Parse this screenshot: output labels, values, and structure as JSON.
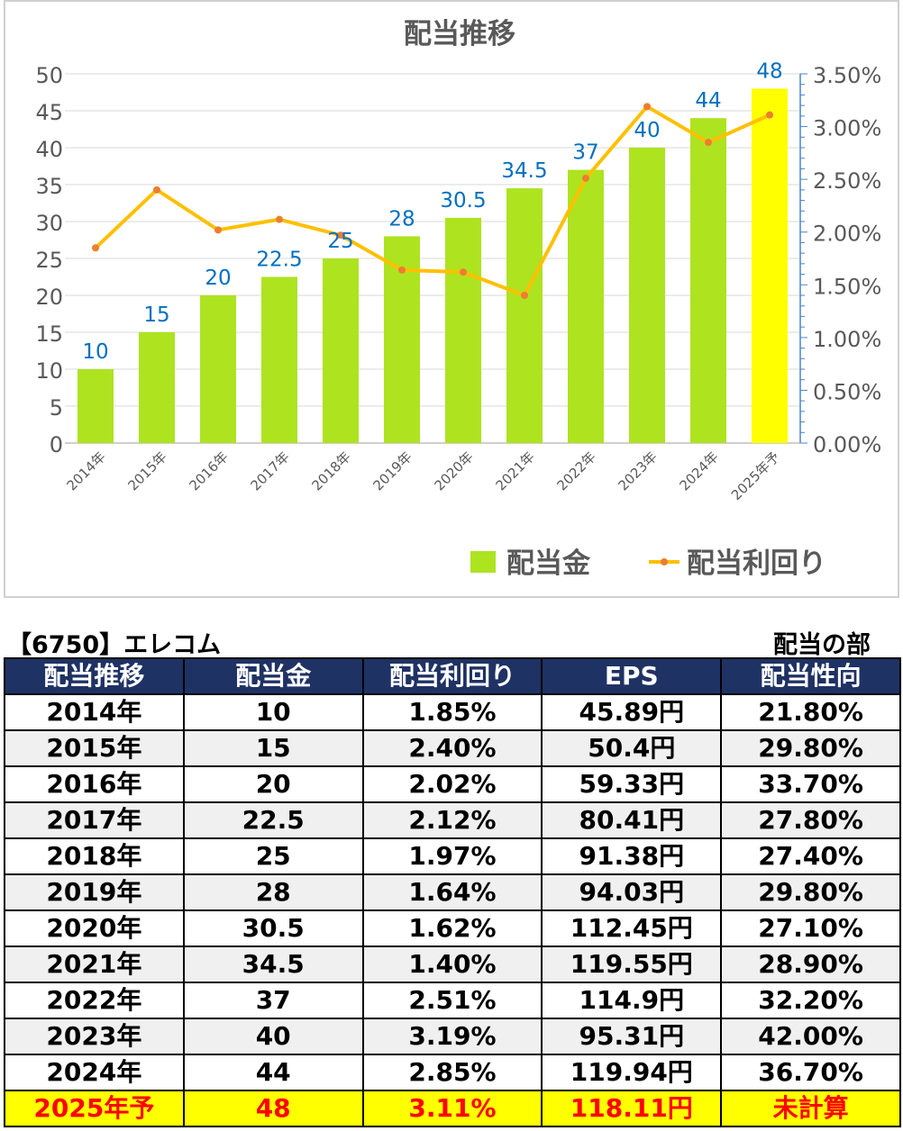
{
  "chart_data": {
    "type": "bar",
    "title": "配当推移",
    "categories": [
      "2014年",
      "2015年",
      "2016年",
      "2017年",
      "2018年",
      "2019年",
      "2020年",
      "2021年",
      "2022年",
      "2023年",
      "2024年",
      "2025年予"
    ],
    "series": [
      {
        "name": "配当金",
        "kind": "bar",
        "axis": "left",
        "values": [
          10,
          15,
          20,
          22.5,
          25,
          28,
          30.5,
          34.5,
          37,
          40,
          44,
          48
        ],
        "data_labels": [
          "10",
          "15",
          "20",
          "22.5",
          "25",
          "28",
          "30.5",
          "34.5",
          "37",
          "40",
          "44",
          "48"
        ]
      },
      {
        "name": "配当利回り",
        "kind": "line",
        "axis": "right",
        "values": [
          1.85,
          2.4,
          2.02,
          2.12,
          1.97,
          1.64,
          1.62,
          1.4,
          2.51,
          3.19,
          2.85,
          3.11
        ]
      }
    ],
    "left_axis": {
      "min": 0,
      "max": 50,
      "step": 5,
      "ticks": [
        "0",
        "5",
        "10",
        "15",
        "20",
        "25",
        "30",
        "35",
        "40",
        "45",
        "50"
      ]
    },
    "right_axis": {
      "min": 0,
      "max": 3.5,
      "step": 0.5,
      "ticks": [
        "0.00%",
        "0.50%",
        "1.00%",
        "1.50%",
        "2.00%",
        "2.50%",
        "3.00%",
        "3.50%"
      ]
    },
    "colors": {
      "bar": "#aee320",
      "bar_highlight": "#ffff00",
      "line": "#ffc000",
      "marker": "#ed7d31",
      "data_label": "#0070c0",
      "grid": "#d9d9d9",
      "right_axis": "#4a86c8"
    },
    "grid": true,
    "legend_position": "bottom-right"
  },
  "table": {
    "title_left": "【6750】エレコム",
    "title_right": "配当の部",
    "headers": [
      "配当推移",
      "配当金",
      "配当利回り",
      "EPS",
      "配当性向"
    ],
    "rows": [
      [
        "2014年",
        "10",
        "1.85%",
        "45.89円",
        "21.80%"
      ],
      [
        "2015年",
        "15",
        "2.40%",
        "50.4円",
        "29.80%"
      ],
      [
        "2016年",
        "20",
        "2.02%",
        "59.33円",
        "33.70%"
      ],
      [
        "2017年",
        "22.5",
        "2.12%",
        "80.41円",
        "27.80%"
      ],
      [
        "2018年",
        "25",
        "1.97%",
        "91.38円",
        "27.40%"
      ],
      [
        "2019年",
        "28",
        "1.64%",
        "94.03円",
        "29.80%"
      ],
      [
        "2020年",
        "30.5",
        "1.62%",
        "112.45円",
        "27.10%"
      ],
      [
        "2021年",
        "34.5",
        "1.40%",
        "119.55円",
        "28.90%"
      ],
      [
        "2022年",
        "37",
        "2.51%",
        "114.9円",
        "32.20%"
      ],
      [
        "2023年",
        "40",
        "3.19%",
        "95.31円",
        "42.00%"
      ],
      [
        "2024年",
        "44",
        "2.85%",
        "119.94円",
        "36.70%"
      ],
      [
        "2025年予",
        "48",
        "3.11%",
        "118.11円",
        "未計算"
      ]
    ],
    "highlight_row": 11,
    "colors": {
      "header_bg": "#1f3264",
      "header_text": "#ffffff",
      "highlight_bg": "#ffff00",
      "highlight_text": "#ff0000",
      "even_row_bg": "#f0f0f0"
    }
  }
}
